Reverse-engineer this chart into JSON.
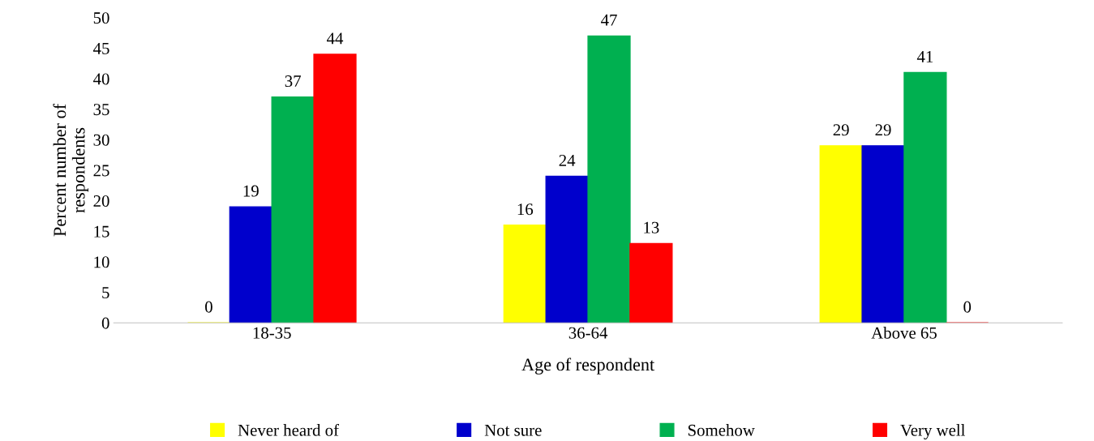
{
  "chart_data": {
    "type": "bar",
    "xlabel": "Age of respondent",
    "ylabel": "Percent number of\nrespondents",
    "categories": [
      "18-35",
      "36-64",
      "Above 65"
    ],
    "series": [
      {
        "name": "Never heard of",
        "color": "#ffff00",
        "values": [
          0,
          16,
          29
        ]
      },
      {
        "name": "Not sure",
        "color": "#0000cc",
        "values": [
          19,
          24,
          29
        ]
      },
      {
        "name": "Somehow",
        "color": "#00b050",
        "values": [
          37,
          47,
          41
        ]
      },
      {
        "name": "Very well",
        "color": "#ff0000",
        "values": [
          44,
          13,
          0
        ]
      }
    ],
    "ylim": [
      0,
      50
    ],
    "yticks": [
      0,
      5,
      10,
      15,
      20,
      25,
      30,
      35,
      40,
      45,
      50
    ],
    "grid": false,
    "legend": "bottom",
    "data_labels": true
  }
}
